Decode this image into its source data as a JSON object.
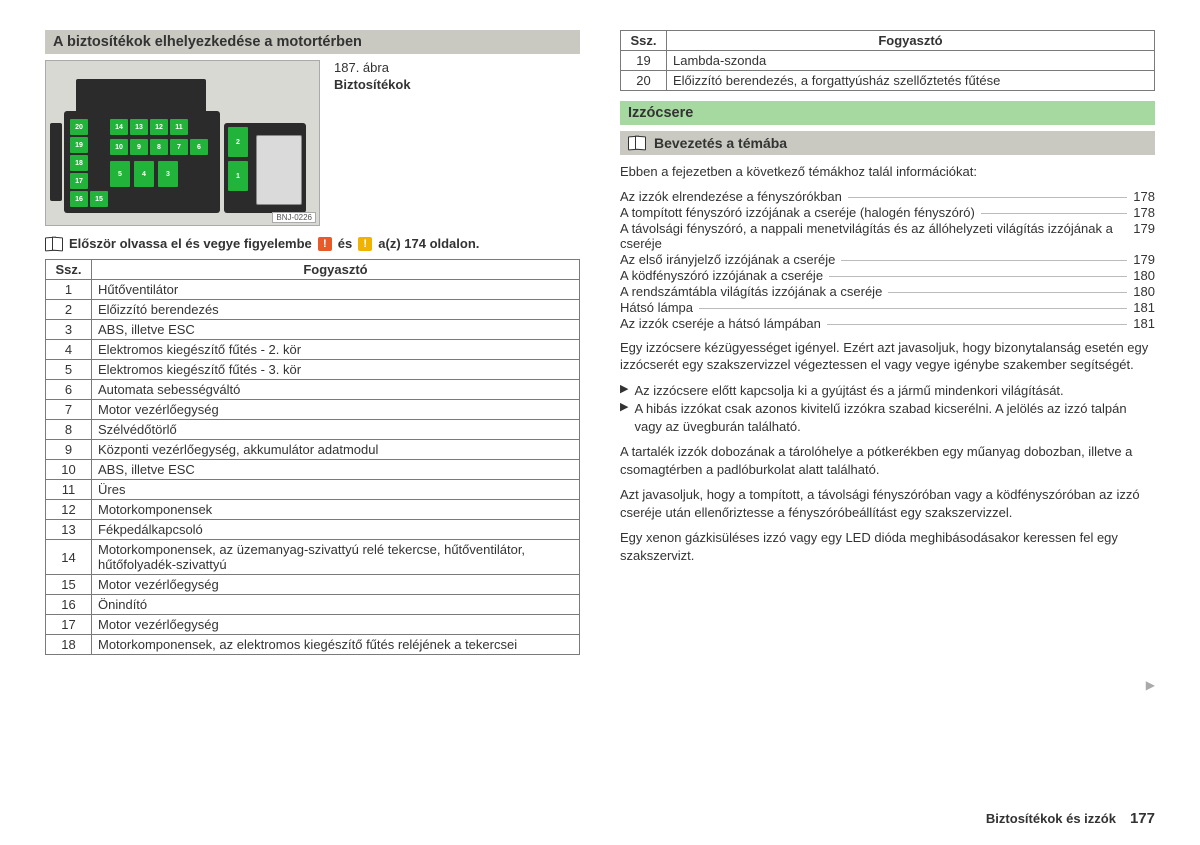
{
  "left": {
    "heading": "A biztosítékok elhelyezkedése a motortérben",
    "figure": {
      "num": "187. ábra",
      "title": "Biztosítékok",
      "code": "BNJ-0226"
    },
    "fusebox_labels": [
      "20",
      "19",
      "18",
      "17",
      "16",
      "15",
      "14",
      "13",
      "12",
      "11",
      "10",
      "9",
      "8",
      "7",
      "6",
      "5",
      "4",
      "3",
      "2",
      "1"
    ],
    "readfirst_a": "Először olvassa el és vegye figyelembe",
    "readfirst_b": "és",
    "readfirst_c": "a(z) 174 oldalon.",
    "badge1": "!",
    "badge2": "!",
    "table": {
      "head": [
        "Ssz.",
        "Fogyasztó"
      ],
      "rows": [
        [
          "1",
          "Hűtőventilátor"
        ],
        [
          "2",
          "Előizzító berendezés"
        ],
        [
          "3",
          "ABS, illetve ESC"
        ],
        [
          "4",
          "Elektromos kiegészítő fűtés - 2. kör"
        ],
        [
          "5",
          "Elektromos kiegészítő fűtés - 3. kör"
        ],
        [
          "6",
          "Automata sebességváltó"
        ],
        [
          "7",
          "Motor vezérlőegység"
        ],
        [
          "8",
          "Szélvédőtörlő"
        ],
        [
          "9",
          "Központi vezérlőegység, akkumulátor adatmodul"
        ],
        [
          "10",
          "ABS, illetve ESC"
        ],
        [
          "11",
          "Üres"
        ],
        [
          "12",
          "Motorkomponensek"
        ],
        [
          "13",
          "Fékpedálkapcsoló"
        ],
        [
          "14",
          "Motorkomponensek, az üzemanyag-szivattyú relé tekercse, hűtőventilátor, hűtőfolyadék-szivattyú"
        ],
        [
          "15",
          "Motor vezérlőegység"
        ],
        [
          "16",
          "Önindító"
        ],
        [
          "17",
          "Motor vezérlőegység"
        ],
        [
          "18",
          "Motorkomponensek, az elektromos kiegészítő fűtés reléjének a tekercsei"
        ]
      ]
    }
  },
  "right": {
    "table": {
      "head": [
        "Ssz.",
        "Fogyasztó"
      ],
      "rows": [
        [
          "19",
          "Lambda-szonda"
        ],
        [
          "20",
          "Előizzító berendezés, a forgattyúsház szellőztetés fűtése"
        ]
      ]
    },
    "heading_green": "Izzócsere",
    "subheading": "Bevezetés a témába",
    "intro": "Ebben a fejezetben a következő témákhoz talál információkat:",
    "toc": [
      {
        "label": "Az izzók elrendezése a fényszórókban",
        "page": "178"
      },
      {
        "label": "A tompított fényszóró izzójának a cseréje (halogén fényszóró)",
        "page": "178"
      },
      {
        "label": "A távolsági fényszóró, a nappali menetvilágítás és az állóhelyzeti világítás izzójának a cseréje",
        "page": "179"
      },
      {
        "label": "Az első irányjelző izzójának a cseréje",
        "page": "179"
      },
      {
        "label": "A ködfényszóró izzójának a cseréje",
        "page": "180"
      },
      {
        "label": "A rendszámtábla világítás izzójának a cseréje",
        "page": "180"
      },
      {
        "label": "Hátsó lámpa",
        "page": "181"
      },
      {
        "label": "Az izzók cseréje a hátsó lámpában",
        "page": "181"
      }
    ],
    "p1": "Egy izzócsere kézügyességet igényel. Ezért azt javasoljuk, hogy bizonytalanság esetén egy izzócserét egy szakszervizzel végeztessen el vagy vegye igénybe szakember segítségét.",
    "b1": "Az izzócsere előtt kapcsolja ki a gyújtást és a jármű mindenkori világítását.",
    "b2": "A hibás izzókat csak azonos kivitelű izzókra szabad kicserélni. A jelölés az izzó talpán vagy az üvegburán található.",
    "p2": "A tartalék izzók dobozának a tárolóhelye a pótkerékben egy műanyag dobozban, illetve a csomagtérben a padlóburkolat alatt található.",
    "p3": "Azt javasoljuk, hogy a tompított, a távolsági fényszóróban vagy a ködfényszóróban az izzó cseréje után ellenőriztesse a fényszóróbeállítást egy szakszervizzel.",
    "p4": "Egy xenon gázkisüléses izzó vagy egy LED dióda meghibásodásakor keressen fel egy szakszervizt."
  },
  "footer": {
    "title": "Biztosítékok és izzók",
    "page": "177"
  }
}
